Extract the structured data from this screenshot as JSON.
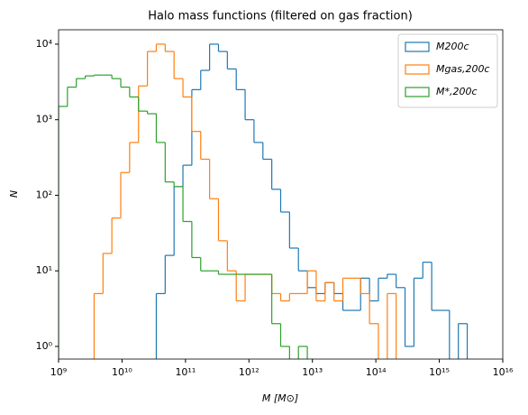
{
  "chart_data": {
    "type": "histogram",
    "title": "Halo mass functions (filtered on gas fraction)",
    "xlabel": "M [M⊙]",
    "ylabel": "N",
    "xscale": "log",
    "yscale": "log",
    "xlim": [
      1000000000.0,
      1e+16
    ],
    "ylim": [
      0.68,
      15500
    ],
    "xticks": [
      {
        "value": 1000000000.0,
        "label": "10⁹"
      },
      {
        "value": 10000000000.0,
        "label": "10¹⁰"
      },
      {
        "value": 100000000000.0,
        "label": "10¹¹"
      },
      {
        "value": 1000000000000.0,
        "label": "10¹²"
      },
      {
        "value": 10000000000000.0,
        "label": "10¹³"
      },
      {
        "value": 100000000000000.0,
        "label": "10¹⁴"
      },
      {
        "value": 1000000000000000.0,
        "label": "10¹⁵"
      },
      {
        "value": 1e+16,
        "label": "10¹⁶"
      }
    ],
    "yticks": [
      {
        "value": 1,
        "label": "10⁰"
      },
      {
        "value": 10,
        "label": "10¹"
      },
      {
        "value": 100,
        "label": "10²"
      },
      {
        "value": 1000,
        "label": "10³"
      },
      {
        "value": 10000,
        "label": "10⁴"
      }
    ],
    "legend": "upper right",
    "bins": [
      1000000000.0,
      1380000000.0,
      1905000000.0,
      2630000000.0,
      3631000000.0,
      5012000000.0,
      6918000000.0,
      9550000000.0,
      13180000000.0,
      18200000000.0,
      25120000000.0,
      34670000000.0,
      47860000000.0,
      66070000000.0,
      91200000000.0,
      125900000000.0,
      173800000000.0,
      239900000000.0,
      331100000000.0,
      457100000000.0,
      631000000000.0,
      871000000000.0,
      1202000000000.0,
      1660000000000.0,
      2291000000000.0,
      3162000000000.0,
      4365000000000.0,
      6026000000000.0,
      8318000000000.0,
      11480000000000.0,
      15850000000000.0,
      21880000000000.0,
      30200000000000.0,
      41690000000000.0,
      57540000000000.0,
      79430000000000.0,
      109600000000000.0,
      151400000000000.0,
      208900000000000.0,
      288400000000000.0,
      398100000000000.0,
      549500000000000.0,
      758600000000000.0,
      1047000000000000.0,
      1445000000000000.0,
      1995000000000000.0,
      2754000000000000.0,
      3802000000000000.0,
      5248000000000000.0,
      7244000000000000.0,
      1e+16
    ],
    "series": [
      {
        "name": "M200c",
        "color": "#1f77b4",
        "values": [
          0,
          0,
          0,
          0,
          0,
          0,
          0,
          0,
          0,
          0,
          0,
          5,
          16,
          130,
          250,
          2500,
          4500,
          10000,
          8000,
          4700,
          2500,
          1000,
          500,
          300,
          120,
          60,
          20,
          10,
          6,
          5,
          7,
          5,
          3,
          3,
          8,
          4,
          8,
          9,
          6,
          1,
          8,
          13,
          3,
          3,
          0,
          2,
          0,
          0,
          0,
          0
        ]
      },
      {
        "name": "Mgas,200c",
        "color": "#ff7f0e",
        "values": [
          0,
          0,
          0,
          0,
          5,
          17,
          50,
          200,
          500,
          2800,
          8000,
          10000,
          8000,
          3500,
          2000,
          700,
          300,
          90,
          25,
          10,
          4,
          9,
          9,
          9,
          5,
          4,
          5,
          5,
          10,
          4,
          7,
          4,
          8,
          8,
          5,
          2,
          0,
          5,
          0,
          0,
          0,
          0,
          0,
          0,
          0,
          0,
          0,
          0,
          0,
          0
        ]
      },
      {
        "name": "M*,200c",
        "color": "#2ca02c",
        "values": [
          1500,
          2700,
          3500,
          3800,
          3900,
          3900,
          3500,
          2700,
          2000,
          1300,
          1200,
          500,
          150,
          130,
          45,
          15,
          10,
          10,
          9,
          9,
          9,
          9,
          9,
          9,
          2,
          1,
          0,
          1,
          0,
          0,
          0,
          0,
          0,
          0,
          0,
          0,
          0,
          0,
          0,
          0,
          0,
          0,
          0,
          0,
          0,
          0,
          0,
          0,
          0,
          0
        ]
      }
    ]
  }
}
